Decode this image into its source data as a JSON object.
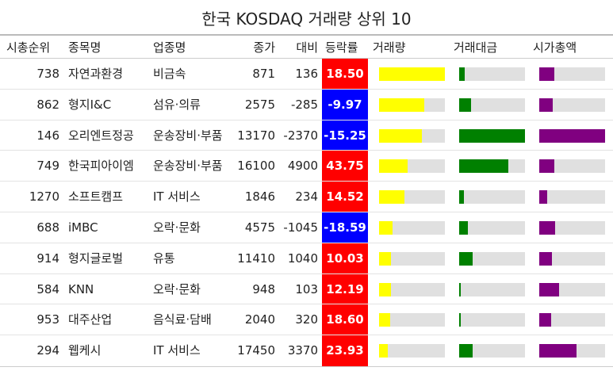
{
  "title": "한국 KOSDAQ 거래량 상위 10",
  "headers": {
    "rank": "시총순위",
    "name": "종목명",
    "sector": "업종명",
    "close": "종가",
    "change": "대비",
    "rate": "등락률",
    "volume": "거래량",
    "value": "거래대금",
    "mcap": "시가총액"
  },
  "colors": {
    "up": "#ff0000",
    "down": "#0000ff",
    "volume_bar": "#ffff00",
    "value_bar": "#008000",
    "mcap_bar": "#800080",
    "track": "#e0e0e0"
  },
  "rows": [
    {
      "rank": "738",
      "name": "자연과환경",
      "sector": "비금속",
      "close": "871",
      "change": "136",
      "rate": "18.50",
      "dir": "up",
      "volume": 1.0,
      "value": 0.09,
      "mcap": 0.23
    },
    {
      "rank": "862",
      "name": "형지I&C",
      "sector": "섬유·의류",
      "close": "2575",
      "change": "-285",
      "rate": "-9.97",
      "dir": "down",
      "volume": 0.69,
      "value": 0.18,
      "mcap": 0.2
    },
    {
      "rank": "146",
      "name": "오리엔트정공",
      "sector": "운송장비·부품",
      "close": "13170",
      "change": "-2370",
      "rate": "-15.25",
      "dir": "down",
      "volume": 0.65,
      "value": 1.0,
      "mcap": 1.0
    },
    {
      "rank": "749",
      "name": "한국피아이엠",
      "sector": "운송장비·부품",
      "close": "16100",
      "change": "4900",
      "rate": "43.75",
      "dir": "up",
      "volume": 0.43,
      "value": 0.75,
      "mcap": 0.23
    },
    {
      "rank": "1270",
      "name": "소프트캠프",
      "sector": "IT 서비스",
      "close": "1846",
      "change": "234",
      "rate": "14.52",
      "dir": "up",
      "volume": 0.38,
      "value": 0.07,
      "mcap": 0.12
    },
    {
      "rank": "688",
      "name": "iMBC",
      "sector": "오락·문화",
      "close": "4575",
      "change": "-1045",
      "rate": "-18.59",
      "dir": "down",
      "volume": 0.21,
      "value": 0.13,
      "mcap": 0.24
    },
    {
      "rank": "914",
      "name": "형지글로벌",
      "sector": "유통",
      "close": "11410",
      "change": "1040",
      "rate": "10.03",
      "dir": "up",
      "volume": 0.18,
      "value": 0.2,
      "mcap": 0.19
    },
    {
      "rank": "584",
      "name": "KNN",
      "sector": "오락·문화",
      "close": "948",
      "change": "103",
      "rate": "12.19",
      "dir": "up",
      "volume": 0.18,
      "value": 0.02,
      "mcap": 0.3
    },
    {
      "rank": "953",
      "name": "대주산업",
      "sector": "음식료·담배",
      "close": "2040",
      "change": "320",
      "rate": "18.60",
      "dir": "up",
      "volume": 0.17,
      "value": 0.03,
      "mcap": 0.18
    },
    {
      "rank": "294",
      "name": "웹케시",
      "sector": "IT 서비스",
      "close": "17450",
      "change": "3370",
      "rate": "23.93",
      "dir": "up",
      "volume": 0.13,
      "value": 0.21,
      "mcap": 0.57
    }
  ]
}
